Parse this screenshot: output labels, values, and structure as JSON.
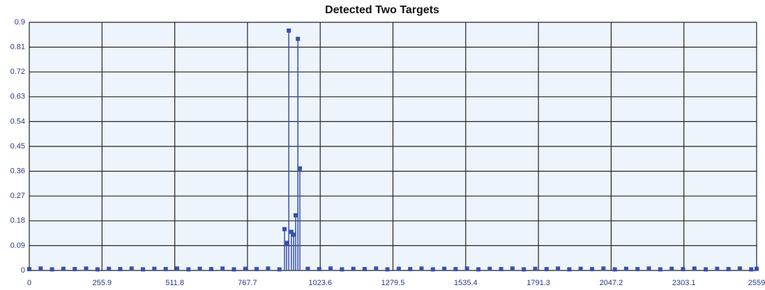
{
  "chart_data": {
    "type": "stem",
    "title": "Detected Two Targets",
    "x": [
      0,
      40,
      80,
      120,
      160,
      200,
      240,
      280,
      320,
      360,
      400,
      440,
      480,
      520,
      560,
      600,
      640,
      680,
      720,
      760,
      800,
      840,
      880,
      898,
      905,
      913,
      922,
      930,
      937,
      945,
      952,
      980,
      1020,
      1060,
      1100,
      1140,
      1180,
      1220,
      1260,
      1300,
      1340,
      1380,
      1420,
      1460,
      1500,
      1540,
      1580,
      1620,
      1660,
      1700,
      1740,
      1780,
      1820,
      1860,
      1900,
      1940,
      1980,
      2020,
      2060,
      2100,
      2140,
      2180,
      2220,
      2260,
      2300,
      2340,
      2380,
      2420,
      2460,
      2500,
      2540,
      2559
    ],
    "series": [
      {
        "color": "#3550b0",
        "values": [
          0.005,
          0.007,
          0.004,
          0.006,
          0.005,
          0.007,
          0.004,
          0.006,
          0.005,
          0.007,
          0.004,
          0.006,
          0.005,
          0.007,
          0.004,
          0.006,
          0.005,
          0.007,
          0.004,
          0.006,
          0.005,
          0.007,
          0.004,
          0.15,
          0.1,
          0.87,
          0.14,
          0.13,
          0.2,
          0.84,
          0.37,
          0.006,
          0.005,
          0.007,
          0.004,
          0.006,
          0.005,
          0.007,
          0.004,
          0.006,
          0.005,
          0.007,
          0.004,
          0.006,
          0.005,
          0.007,
          0.004,
          0.006,
          0.005,
          0.007,
          0.004,
          0.006,
          0.005,
          0.007,
          0.004,
          0.006,
          0.005,
          0.007,
          0.004,
          0.006,
          0.005,
          0.007,
          0.004,
          0.006,
          0.005,
          0.007,
          0.004,
          0.006,
          0.005,
          0.007,
          0.004,
          0.006
        ]
      }
    ],
    "xlim": [
      0,
      2559
    ],
    "xticks": [
      0,
      255.9,
      511.8,
      767.7,
      1023.6,
      1279.5,
      1535.4,
      1791.3,
      2047.2,
      2303.1,
      2559
    ],
    "ylim": [
      0,
      0.9
    ],
    "yticks": [
      0,
      0.09,
      0.18,
      0.27,
      0.36,
      0.45,
      0.54,
      0.63,
      0.72,
      0.81,
      0.9
    ],
    "grid": true
  }
}
